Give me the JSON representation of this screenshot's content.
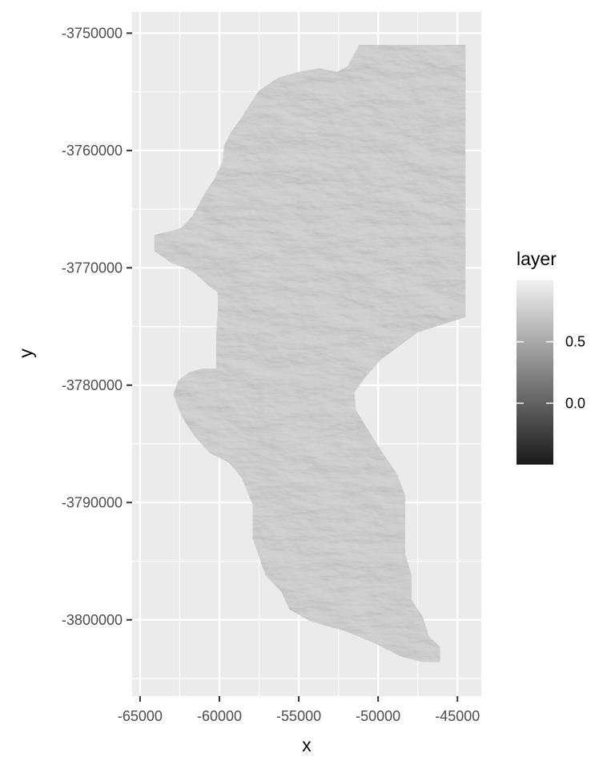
{
  "chart_data": {
    "type": "heatmap",
    "title": "",
    "xlabel": "x",
    "ylabel": "y",
    "xlim": [
      -65500,
      -43500
    ],
    "ylim": [
      -3806500,
      -3748200
    ],
    "x_ticks": [
      -65000,
      -60000,
      -55000,
      -50000,
      -45000
    ],
    "x_tick_labels": [
      "-65000",
      "-60000",
      "-55000",
      "-50000",
      "-45000"
    ],
    "y_ticks": [
      -3750000,
      -3760000,
      -3770000,
      -3780000,
      -3790000,
      -3800000
    ],
    "y_tick_labels": [
      "-3750000",
      "-3760000",
      "-3770000",
      "-3780000",
      "-3790000",
      "-3800000"
    ],
    "grid": true,
    "legend": {
      "title": "layer",
      "position": "right",
      "range": [
        -0.5,
        1.0
      ],
      "breaks": [
        0.0,
        0.5
      ],
      "break_labels": [
        "0.0",
        "0.5"
      ],
      "low_color": "#1a1a1a",
      "high_color": "#f0f0f0"
    },
    "raster_fill": "#bdbdbd",
    "raster_outline": [
      [
        -51200,
        -3751000
      ],
      [
        -44500,
        -3751000
      ],
      [
        -44500,
        -3774200
      ],
      [
        -47500,
        -3775500
      ],
      [
        -49800,
        -3777800
      ],
      [
        -50800,
        -3779300
      ],
      [
        -51500,
        -3780600
      ],
      [
        -51400,
        -3782100
      ],
      [
        -50600,
        -3783900
      ],
      [
        -49800,
        -3785600
      ],
      [
        -48800,
        -3787600
      ],
      [
        -48300,
        -3789400
      ],
      [
        -48300,
        -3791600
      ],
      [
        -48300,
        -3794400
      ],
      [
        -47900,
        -3796200
      ],
      [
        -47900,
        -3798300
      ],
      [
        -47200,
        -3799700
      ],
      [
        -46800,
        -3801400
      ],
      [
        -46100,
        -3802300
      ],
      [
        -46100,
        -3803600
      ],
      [
        -47200,
        -3803600
      ],
      [
        -48600,
        -3803100
      ],
      [
        -50200,
        -3802000
      ],
      [
        -52000,
        -3801000
      ],
      [
        -54300,
        -3800100
      ],
      [
        -55600,
        -3799100
      ],
      [
        -56100,
        -3797600
      ],
      [
        -57100,
        -3796200
      ],
      [
        -57900,
        -3793100
      ],
      [
        -57900,
        -3790200
      ],
      [
        -58600,
        -3787900
      ],
      [
        -59400,
        -3786600
      ],
      [
        -60600,
        -3785800
      ],
      [
        -61600,
        -3784300
      ],
      [
        -62400,
        -3782600
      ],
      [
        -62900,
        -3780800
      ],
      [
        -62600,
        -3779600
      ],
      [
        -61900,
        -3778900
      ],
      [
        -61100,
        -3778600
      ],
      [
        -60200,
        -3778600
      ],
      [
        -60200,
        -3775700
      ],
      [
        -60100,
        -3773700
      ],
      [
        -60100,
        -3772100
      ],
      [
        -60700,
        -3771500
      ],
      [
        -61500,
        -3770500
      ],
      [
        -62000,
        -3770100
      ],
      [
        -63000,
        -3769600
      ],
      [
        -64100,
        -3768600
      ],
      [
        -64100,
        -3767200
      ],
      [
        -62900,
        -3766800
      ],
      [
        -62400,
        -3766600
      ],
      [
        -61700,
        -3765600
      ],
      [
        -60900,
        -3763600
      ],
      [
        -60300,
        -3762400
      ],
      [
        -59800,
        -3760900
      ],
      [
        -59700,
        -3759600
      ],
      [
        -59300,
        -3758500
      ],
      [
        -58600,
        -3757200
      ],
      [
        -58000,
        -3755900
      ],
      [
        -57500,
        -3754900
      ],
      [
        -56300,
        -3753800
      ],
      [
        -55000,
        -3753300
      ],
      [
        -53700,
        -3753000
      ],
      [
        -52600,
        -3753300
      ],
      [
        -51900,
        -3752800
      ],
      [
        -51200,
        -3751000
      ]
    ]
  }
}
